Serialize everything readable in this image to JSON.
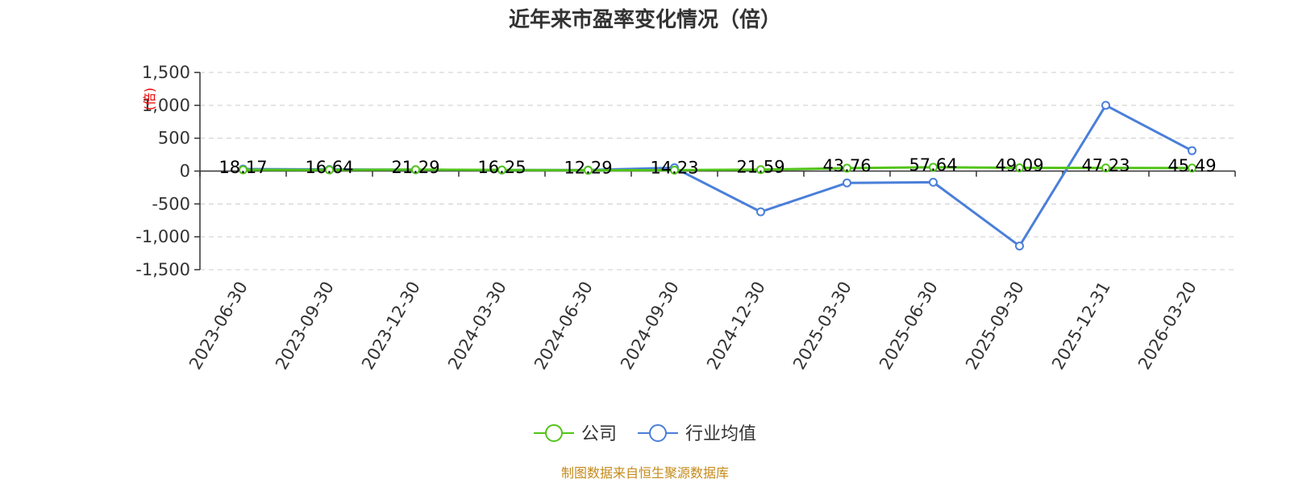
{
  "chart_data": {
    "type": "line",
    "title": "近年来市盈率变化情况（倍）",
    "ylabel": "(倍)",
    "xlabel": "",
    "categories": [
      "2023-06-30",
      "2023-09-30",
      "2023-12-30",
      "2024-03-30",
      "2024-06-30",
      "2024-09-30",
      "2024-12-30",
      "2025-03-30",
      "2025-06-30",
      "2025-09-30",
      "2025-12-31",
      "2026-03-20"
    ],
    "yticks": [
      1500,
      1000,
      500,
      0,
      -500,
      -1000,
      -1500
    ],
    "ytick_labels": [
      "1,500",
      "1,000",
      "500",
      "0",
      "-500",
      "-1,000",
      "-1,500"
    ],
    "ylim": [
      -1500,
      1500
    ],
    "grid": true,
    "legend_position": "bottom-center",
    "series": [
      {
        "name": "公司",
        "color": "#52c41a",
        "values": [
          18.17,
          16.64,
          21.29,
          16.25,
          12.29,
          14.23,
          21.59,
          43.76,
          57.64,
          49.09,
          47.23,
          45.49
        ],
        "data_labels": [
          "18.17",
          "16.64",
          "21.29",
          "16.25",
          "12.29",
          "14.23",
          "21.59",
          "43.76",
          "57.64",
          "49.09",
          "47.23",
          "45.49"
        ]
      },
      {
        "name": "行业均值",
        "color": "#4a7fd9",
        "values": [
          30,
          25,
          20,
          15,
          15,
          50,
          -620,
          -180,
          -170,
          -1140,
          1000,
          310
        ]
      }
    ]
  },
  "source_text": "制图数据来自恒生聚源数据库"
}
